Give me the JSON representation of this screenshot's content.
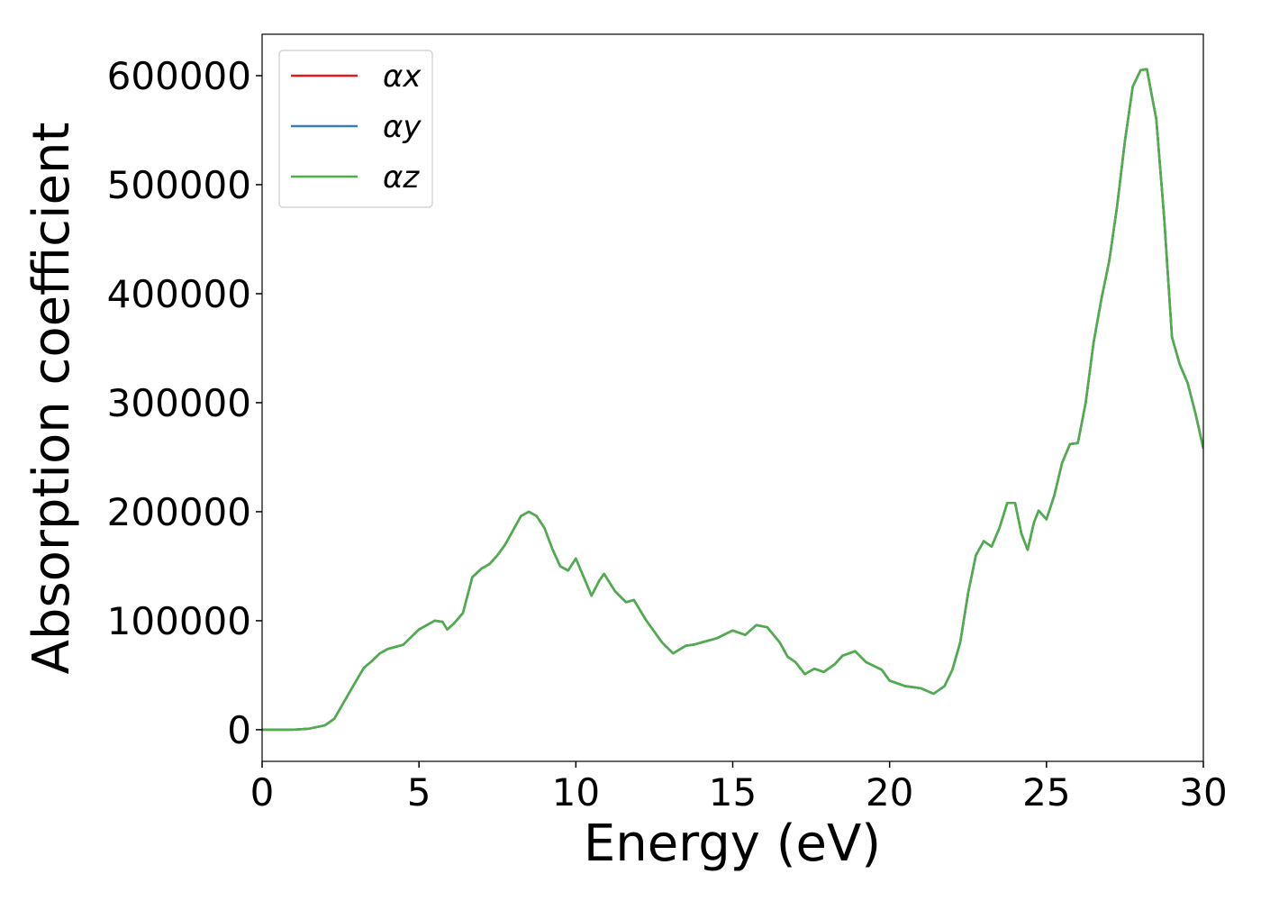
{
  "chart_data": {
    "type": "line",
    "xlabel": "Energy (eV)",
    "ylabel": "Absorption coefficient",
    "xlim": [
      0,
      30
    ],
    "ylim": [
      -29000,
      638000
    ],
    "xticks": [
      0,
      5,
      10,
      15,
      20,
      25,
      30
    ],
    "yticks": [
      0,
      100000,
      200000,
      300000,
      400000,
      500000,
      600000
    ],
    "legend": "upper left",
    "x": [
      0,
      1,
      1.5,
      2,
      2.3,
      2.5,
      3,
      3.25,
      3.5,
      3.75,
      4,
      4.5,
      5,
      5.5,
      5.75,
      5.9,
      6.1,
      6.4,
      6.7,
      7,
      7.25,
      7.5,
      7.75,
      8,
      8.25,
      8.5,
      8.75,
      9,
      9.25,
      9.5,
      9.75,
      10,
      10.25,
      10.5,
      10.75,
      10.9,
      11.25,
      11.6,
      11.85,
      12.25,
      12.75,
      13.1,
      13.5,
      13.75,
      14,
      14.5,
      15,
      15.4,
      15.75,
      16.1,
      16.5,
      16.75,
      17,
      17.3,
      17.6,
      17.9,
      18.25,
      18.5,
      18.9,
      19.25,
      19.75,
      20,
      20.5,
      21,
      21.4,
      21.75,
      22,
      22.25,
      22.5,
      22.75,
      23,
      23.25,
      23.5,
      23.75,
      24,
      24.2,
      24.4,
      24.6,
      24.75,
      25,
      25.25,
      25.5,
      25.75,
      26,
      26.25,
      26.5,
      26.75,
      27,
      27.25,
      27.5,
      27.75,
      28,
      28.2,
      28.5,
      28.75,
      29,
      29.25,
      29.5,
      29.75,
      30
    ],
    "series": [
      {
        "name": "αx",
        "color": "#e41a1c",
        "values": [
          0,
          0,
          1000,
          4000,
          10000,
          20000,
          45000,
          57000,
          63000,
          70000,
          74000,
          78000,
          92000,
          100000,
          99000,
          92000,
          97000,
          107000,
          140000,
          148000,
          152000,
          160000,
          170000,
          183000,
          196000,
          200000,
          196000,
          185000,
          166000,
          150000,
          146000,
          157000,
          140000,
          123000,
          137000,
          143000,
          127000,
          117000,
          119000,
          100000,
          80000,
          70000,
          77000,
          78000,
          80000,
          84000,
          91000,
          87000,
          96000,
          94000,
          80000,
          67000,
          62000,
          51000,
          56000,
          53000,
          60000,
          68000,
          72000,
          62000,
          55000,
          45000,
          40000,
          38000,
          33000,
          40000,
          55000,
          80000,
          125000,
          160000,
          173000,
          168000,
          185000,
          208000,
          208000,
          180000,
          165000,
          190000,
          201000,
          193000,
          215000,
          245000,
          262000,
          263000,
          300000,
          355000,
          395000,
          430000,
          480000,
          540000,
          590000,
          605000,
          606000,
          560000,
          470000,
          360000,
          335000,
          318000,
          290000,
          258000
        ]
      },
      {
        "name": "αy",
        "color": "#377eb8",
        "values": [
          0,
          0,
          1000,
          4000,
          10000,
          20000,
          45000,
          57000,
          63000,
          70000,
          74000,
          78000,
          92000,
          100000,
          99000,
          92000,
          97000,
          107000,
          140000,
          148000,
          152000,
          160000,
          170000,
          183000,
          196000,
          200000,
          196000,
          185000,
          166000,
          150000,
          146000,
          157000,
          140000,
          123000,
          137000,
          143000,
          127000,
          117000,
          119000,
          100000,
          80000,
          70000,
          77000,
          78000,
          80000,
          84000,
          91000,
          87000,
          96000,
          94000,
          80000,
          67000,
          62000,
          51000,
          56000,
          53000,
          60000,
          68000,
          72000,
          62000,
          55000,
          45000,
          40000,
          38000,
          33000,
          40000,
          55000,
          80000,
          125000,
          160000,
          173000,
          168000,
          185000,
          208000,
          208000,
          180000,
          165000,
          190000,
          201000,
          193000,
          215000,
          245000,
          262000,
          263000,
          300000,
          355000,
          395000,
          430000,
          480000,
          540000,
          590000,
          605000,
          606000,
          560000,
          470000,
          360000,
          335000,
          318000,
          290000,
          258000
        ]
      },
      {
        "name": "αz",
        "color": "#4daf4a",
        "values": [
          0,
          0,
          1000,
          4000,
          10000,
          20000,
          45000,
          57000,
          63000,
          70000,
          74000,
          78000,
          92000,
          100000,
          99000,
          92000,
          97000,
          107000,
          140000,
          148000,
          152000,
          160000,
          170000,
          183000,
          196000,
          200000,
          196000,
          185000,
          166000,
          150000,
          146000,
          157000,
          140000,
          123000,
          137000,
          143000,
          127000,
          117000,
          119000,
          100000,
          80000,
          70000,
          77000,
          78000,
          80000,
          84000,
          91000,
          87000,
          96000,
          94000,
          80000,
          67000,
          62000,
          51000,
          56000,
          53000,
          60000,
          68000,
          72000,
          62000,
          55000,
          45000,
          40000,
          38000,
          33000,
          40000,
          55000,
          80000,
          125000,
          160000,
          173000,
          168000,
          185000,
          208000,
          208000,
          180000,
          165000,
          190000,
          201000,
          193000,
          215000,
          245000,
          262000,
          263000,
          300000,
          355000,
          395000,
          430000,
          480000,
          540000,
          590000,
          605000,
          606000,
          560000,
          470000,
          360000,
          335000,
          318000,
          290000,
          258000
        ]
      }
    ]
  }
}
